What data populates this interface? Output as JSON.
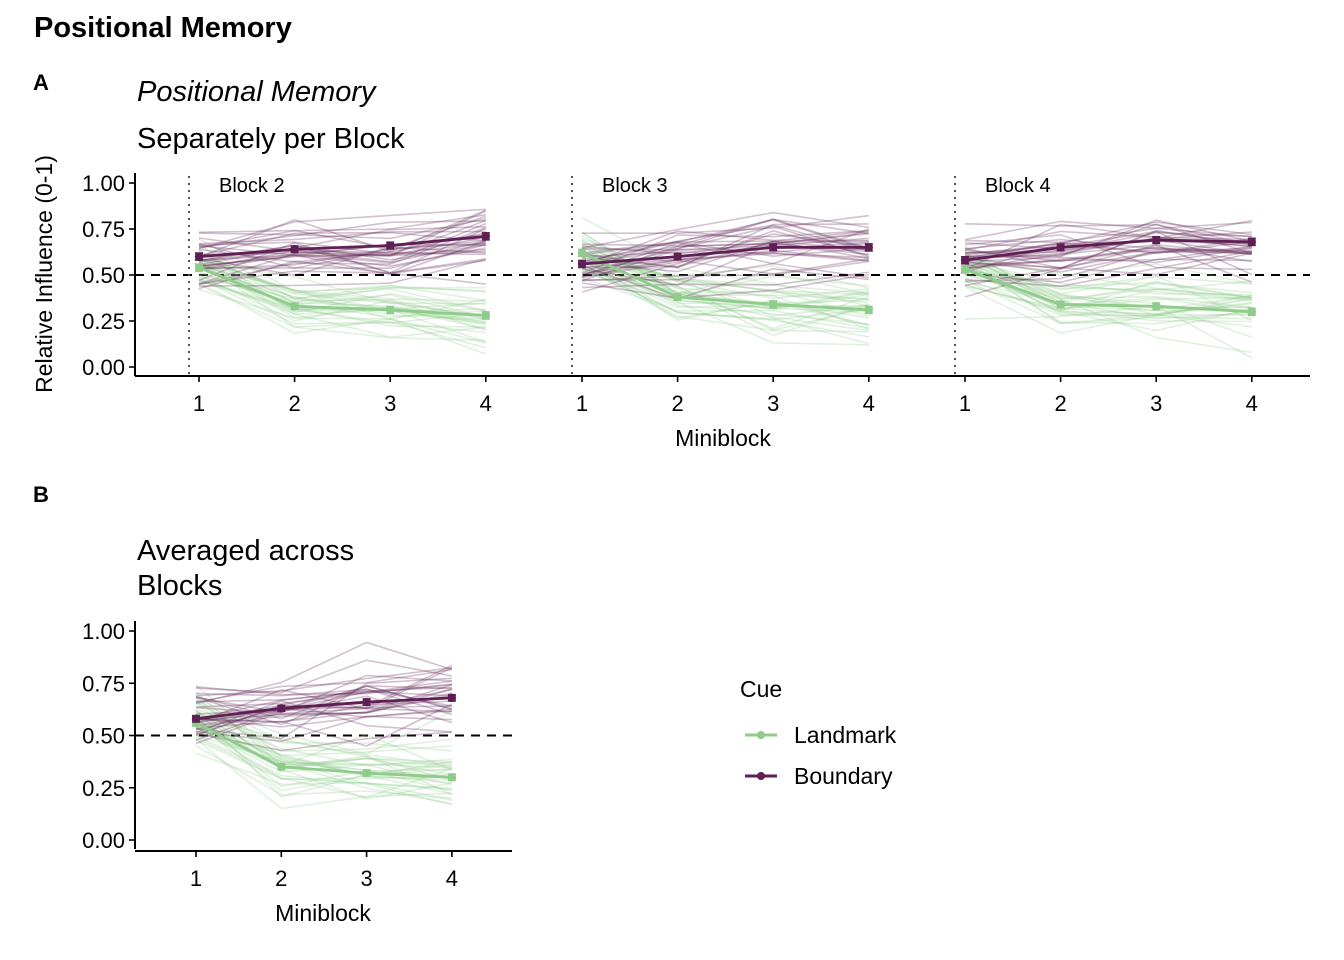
{
  "figure_title": "Positional Memory",
  "colors": {
    "Landmark": "#8fcb8b",
    "Boundary": "#5e1f54"
  },
  "chart_data": [
    {
      "panel": "A",
      "type": "line",
      "title": "Positional Memory",
      "subtitle": "Separately per Block",
      "xlabel": "Miniblock",
      "ylabel": "Relative Influence (0-1)",
      "ylim": [
        0,
        1
      ],
      "yticks": [
        "0.00",
        "0.25",
        "0.50",
        "0.75",
        "1.00"
      ],
      "xticks": [
        "1",
        "2",
        "3",
        "4"
      ],
      "reference_line": 0.5,
      "grid": false,
      "facets": [
        {
          "label": "Block 2",
          "x": [
            1,
            2,
            3,
            4
          ],
          "series": [
            {
              "name": "Landmark",
              "values": [
                0.54,
                0.33,
                0.31,
                0.28
              ]
            },
            {
              "name": "Boundary",
              "values": [
                0.6,
                0.64,
                0.66,
                0.71
              ]
            }
          ]
        },
        {
          "label": "Block 3",
          "x": [
            1,
            2,
            3,
            4
          ],
          "series": [
            {
              "name": "Landmark",
              "values": [
                0.62,
                0.38,
                0.34,
                0.31
              ]
            },
            {
              "name": "Boundary",
              "values": [
                0.56,
                0.6,
                0.65,
                0.65
              ]
            }
          ]
        },
        {
          "label": "Block 4",
          "x": [
            1,
            2,
            3,
            4
          ],
          "series": [
            {
              "name": "Landmark",
              "values": [
                0.53,
                0.34,
                0.33,
                0.3
              ]
            },
            {
              "name": "Boundary",
              "values": [
                0.58,
                0.65,
                0.69,
                0.68
              ]
            }
          ]
        }
      ]
    },
    {
      "panel": "B",
      "type": "line",
      "title": "Averaged across Blocks",
      "title_lines": [
        "Averaged across",
        "Blocks"
      ],
      "xlabel": "Miniblock",
      "ylabel": "",
      "ylim": [
        0,
        1
      ],
      "yticks": [
        "0.00",
        "0.25",
        "0.50",
        "0.75",
        "1.00"
      ],
      "xticks": [
        "1",
        "2",
        "3",
        "4"
      ],
      "reference_line": 0.5,
      "grid": false,
      "x": [
        1,
        2,
        3,
        4
      ],
      "series": [
        {
          "name": "Landmark",
          "values": [
            0.56,
            0.35,
            0.32,
            0.3
          ]
        },
        {
          "name": "Boundary",
          "values": [
            0.58,
            0.63,
            0.66,
            0.68
          ]
        }
      ]
    }
  ],
  "legend": {
    "title": "Cue",
    "items": [
      {
        "name": "Landmark",
        "label": "Landmark"
      },
      {
        "name": "Boundary",
        "label": "Boundary"
      }
    ]
  }
}
